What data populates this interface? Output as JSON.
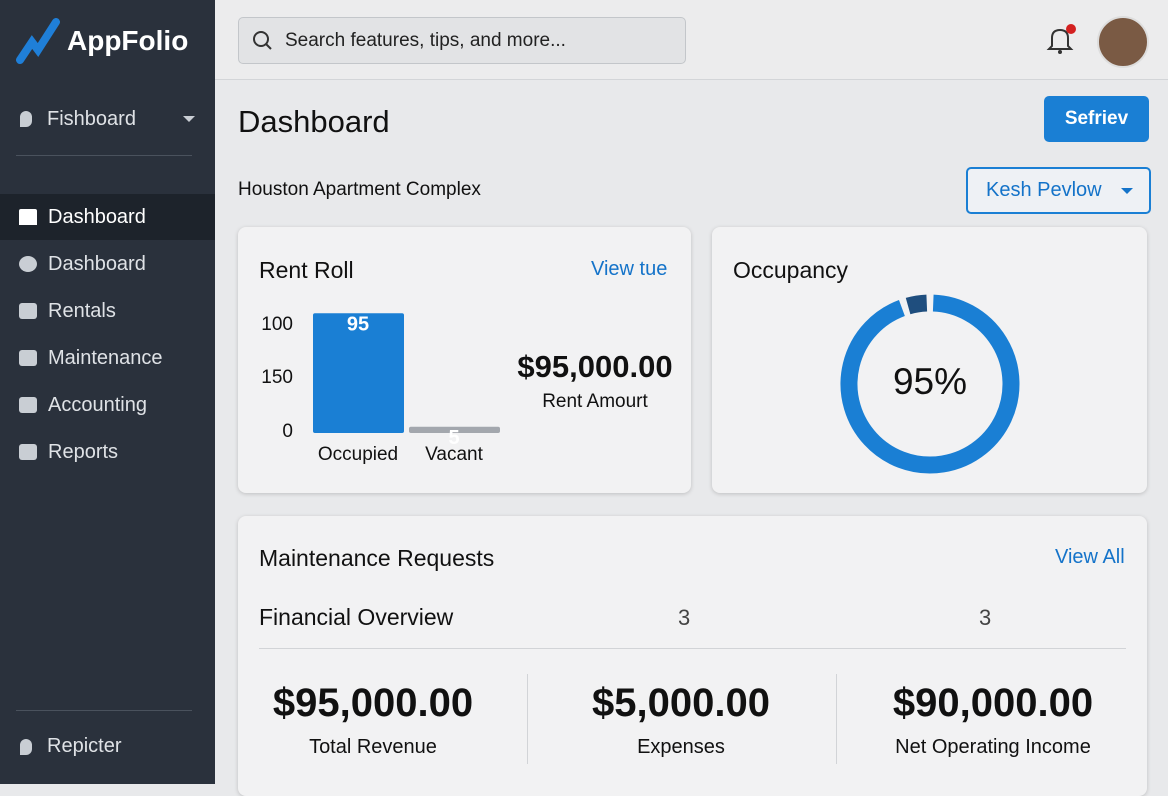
{
  "sidebar": {
    "logo": "AppFolio",
    "selector": "Fishboard",
    "nav": [
      "Dashboard",
      "Dashboard",
      "Rentals",
      "Maintenance",
      "Accounting",
      "Reports"
    ],
    "footer": "Repicter"
  },
  "header": {
    "search_placeholder": "Search features, tips, and more..."
  },
  "page": {
    "title": "Dashboard",
    "button": "Sefriev",
    "subtitle": "Houston Apartment Complex",
    "dropdown": "Kesh Pevlow"
  },
  "rent_roll": {
    "title": "Rent Roll",
    "link": "View tue",
    "axis_labels": [
      "100",
      "150",
      "0"
    ],
    "bars": [
      {
        "label": "Occupied",
        "value": 95
      },
      {
        "label": "Vacant",
        "value": 5
      }
    ],
    "amount": "$95,000.00",
    "amount_label": "Rent Amourt"
  },
  "occupancy": {
    "title": "Occupancy",
    "value": 95,
    "label": "95%"
  },
  "maintenance": {
    "title": "Maintenance Requests",
    "link": "View All",
    "subtitle": "Financial Overview",
    "counts": [
      3,
      3
    ],
    "stats": [
      {
        "value": "$95,000.00",
        "label": "Total Revenue"
      },
      {
        "value": "$5,000.00",
        "label": "Expenses"
      },
      {
        "value": "$90,000.00",
        "label": "Net Operating Income"
      }
    ]
  }
}
